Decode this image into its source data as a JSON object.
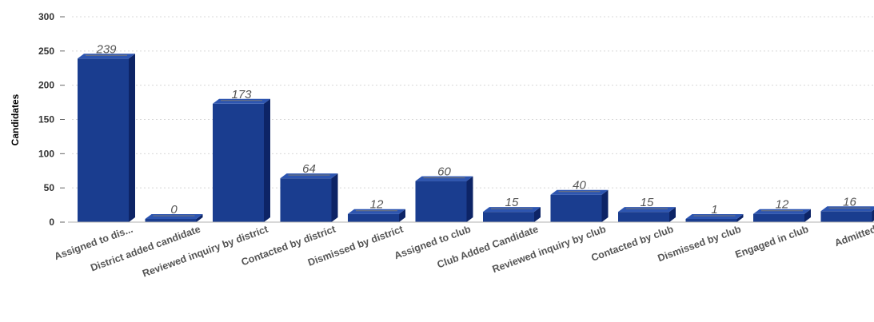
{
  "chart_data": {
    "type": "bar",
    "title": "",
    "xlabel": "",
    "ylabel": "Candidates",
    "ylim": [
      0,
      300
    ],
    "yticks": [
      0,
      50,
      100,
      150,
      200,
      250,
      300
    ],
    "grid": true,
    "categories": [
      "Assigned to dis...",
      "District added candidate",
      "Reviewed inquiry by district",
      "Contacted by district",
      "Dismissed by district",
      "Assigned to club",
      "Club Added Candidate",
      "Reviewed inquiry by club",
      "Contacted by club",
      "Dismissed by club",
      "Engaged in club",
      "Admitted"
    ],
    "values": [
      239,
      0,
      173,
      64,
      12,
      60,
      15,
      40,
      15,
      1,
      12,
      16
    ],
    "colors": {
      "bar_front": "#1a3d8f",
      "bar_top": "#2d55b0",
      "bar_side": "#0d2466",
      "grid": "#d8d8d8"
    }
  }
}
